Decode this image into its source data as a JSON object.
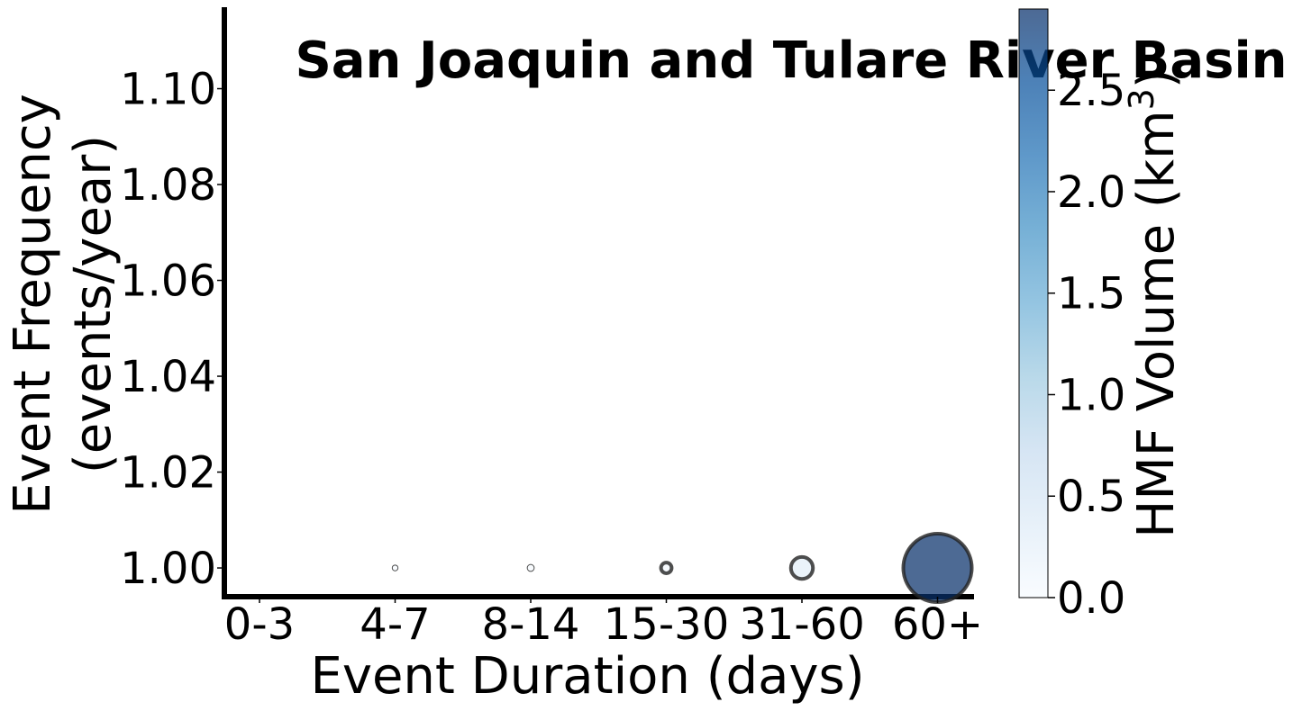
{
  "chart_data": {
    "type": "scatter",
    "title": "San Joaquin and Tulare River Basin",
    "xlabel": "Event Duration (days)",
    "ylabel_lines": [
      "Event Frequency",
      "(events/year)"
    ],
    "categories": [
      "0-3",
      "4-7",
      "8-14",
      "15-30",
      "31-60",
      "60+"
    ],
    "ylim": [
      0.994,
      1.117
    ],
    "yticks": [
      1.0,
      1.02,
      1.04,
      1.06,
      1.08,
      1.1
    ],
    "ytick_labels": [
      "1.00",
      "1.02",
      "1.04",
      "1.06",
      "1.08",
      "1.10"
    ],
    "points": [
      {
        "category": "4-7",
        "frequency": 1.0,
        "volume": 0.01
      },
      {
        "category": "8-14",
        "frequency": 1.0,
        "volume": 0.03
      },
      {
        "category": "15-30",
        "frequency": 1.0,
        "volume": 0.07
      },
      {
        "category": "31-60",
        "frequency": 1.0,
        "volume": 0.3
      },
      {
        "category": "60+",
        "frequency": 1.0,
        "volume": 2.9
      }
    ],
    "colorbar": {
      "label_main": "HMF Volume (km",
      "label_sup": "3",
      "label_end": ")",
      "vmin": 0.0,
      "vmax": 2.9,
      "ticks": [
        0.0,
        0.5,
        1.0,
        1.5,
        2.0,
        2.5
      ],
      "tick_labels": [
        "0.0",
        "0.5",
        "1.0",
        "1.5",
        "2.0",
        "2.5"
      ],
      "cmap": [
        "#f7fbff",
        "#deebf7",
        "#c6dbef",
        "#9ecae1",
        "#6baed6",
        "#4292c6",
        "#2171b5",
        "#08519c",
        "#08306b"
      ]
    },
    "grid": false,
    "legend": "none"
  }
}
